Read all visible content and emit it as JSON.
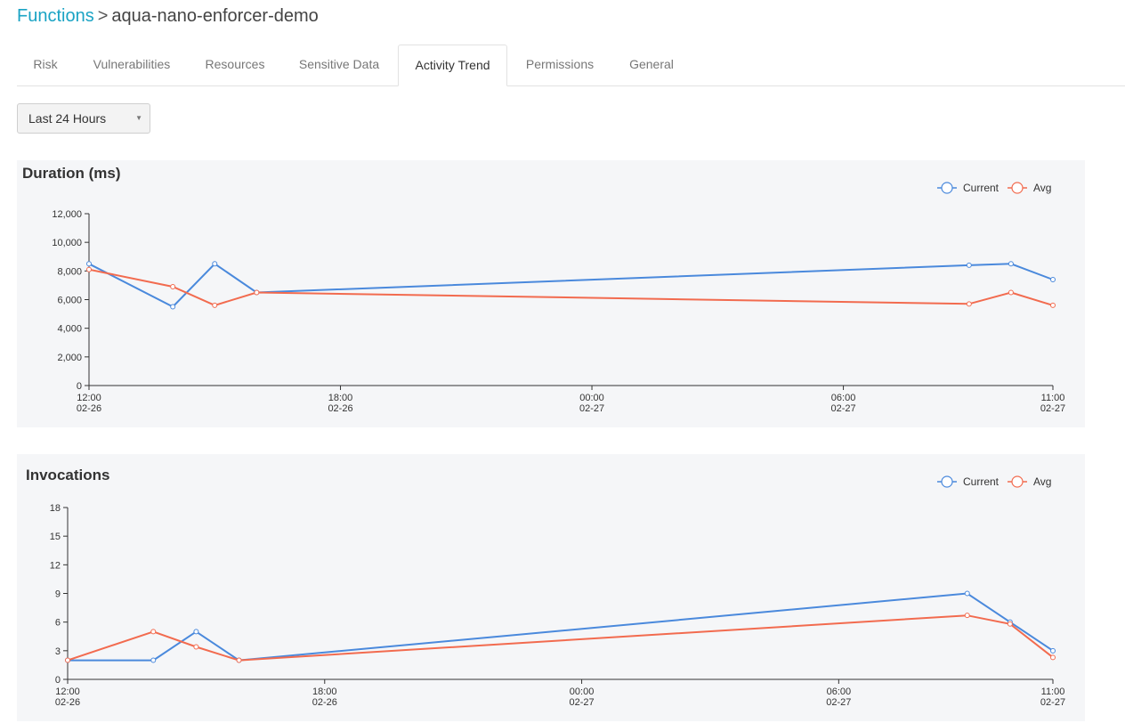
{
  "breadcrumb": {
    "root": "Functions",
    "separator": ">",
    "current": "aqua-nano-enforcer-demo"
  },
  "tabs": [
    {
      "label": "Risk",
      "active": false
    },
    {
      "label": "Vulnerabilities",
      "active": false
    },
    {
      "label": "Resources",
      "active": false
    },
    {
      "label": "Sensitive Data",
      "active": false
    },
    {
      "label": "Activity Trend",
      "active": true
    },
    {
      "label": "Permissions",
      "active": false
    },
    {
      "label": "General",
      "active": false
    }
  ],
  "time_range": {
    "selected": "Last 24 Hours"
  },
  "colors": {
    "current": "#4a89dc",
    "avg": "#f26b4f",
    "link": "#1aa3c4"
  },
  "chart_data": [
    {
      "type": "line",
      "title": "Duration (ms)",
      "legend": "top-right",
      "ylim": [
        0,
        12000
      ],
      "yticks": [
        0,
        2000,
        4000,
        6000,
        8000,
        10000,
        12000
      ],
      "ytick_labels": [
        "0",
        "2,000",
        "4,000",
        "6,000",
        "8,000",
        "10,000",
        "12,000"
      ],
      "xlim": [
        0,
        23
      ],
      "xticks": [
        {
          "x": 0,
          "time": "12:00",
          "date": "02-26"
        },
        {
          "x": 6,
          "time": "18:00",
          "date": "02-26"
        },
        {
          "x": 12,
          "time": "00:00",
          "date": "02-27"
        },
        {
          "x": 18,
          "time": "06:00",
          "date": "02-27"
        },
        {
          "x": 23,
          "time": "11:00",
          "date": "02-27"
        }
      ],
      "series": [
        {
          "name": "Current",
          "x": [
            0,
            2,
            3,
            4,
            21,
            22,
            23
          ],
          "values": [
            8500,
            5500,
            8500,
            6500,
            8400,
            8500,
            7400
          ]
        },
        {
          "name": "Avg",
          "x": [
            0,
            2,
            3,
            4,
            21,
            22,
            23
          ],
          "values": [
            8100,
            6900,
            5600,
            6500,
            5700,
            6500,
            5600
          ]
        }
      ]
    },
    {
      "type": "line",
      "title": "Invocations",
      "legend": "top-right",
      "ylim": [
        0,
        18
      ],
      "yticks": [
        0,
        3,
        6,
        9,
        12,
        15,
        18
      ],
      "ytick_labels": [
        "0",
        "3",
        "6",
        "9",
        "12",
        "15",
        "18"
      ],
      "xlim": [
        0,
        23
      ],
      "xticks": [
        {
          "x": 0,
          "time": "12:00",
          "date": "02-26"
        },
        {
          "x": 6,
          "time": "18:00",
          "date": "02-26"
        },
        {
          "x": 12,
          "time": "00:00",
          "date": "02-27"
        },
        {
          "x": 18,
          "time": "06:00",
          "date": "02-27"
        },
        {
          "x": 23,
          "time": "11:00",
          "date": "02-27"
        }
      ],
      "series": [
        {
          "name": "Current",
          "x": [
            0,
            2,
            3,
            4,
            21,
            22,
            23
          ],
          "values": [
            2,
            2,
            5,
            2,
            9,
            6,
            3
          ]
        },
        {
          "name": "Avg",
          "x": [
            0,
            2,
            3,
            4,
            21,
            22,
            23
          ],
          "values": [
            2,
            5,
            3.4,
            2,
            6.7,
            5.8,
            2.3
          ]
        }
      ]
    }
  ]
}
